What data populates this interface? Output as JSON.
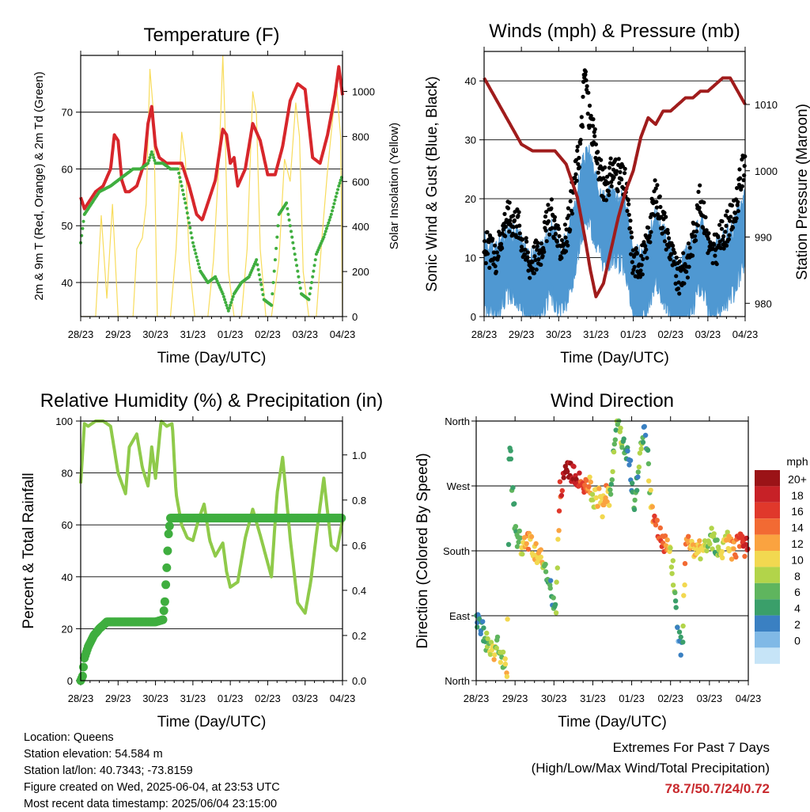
{
  "chart_data": [
    {
      "type": "line",
      "panel": "temperature",
      "title": "Temperature (F)",
      "xlabel": "Time (Day/UTC)",
      "ylabel": "2m & 9m T (Red, Orange) & 2m Td (Green)",
      "y2label": "Solar Insolation (Yellow)",
      "x_ticks": [
        "28/23",
        "29/23",
        "30/23",
        "31/23",
        "01/23",
        "02/23",
        "03/23",
        "04/23"
      ],
      "xlim": [
        0,
        7
      ],
      "ylim": [
        34,
        80
      ],
      "y_ticks": [
        40,
        50,
        60,
        70
      ],
      "y2lim": [
        0,
        1160
      ],
      "y2_ticks": [
        0,
        200,
        400,
        600,
        800,
        1000
      ],
      "grid": true,
      "series": [
        {
          "name": "2m T",
          "color": "#d7262b",
          "axis": "left",
          "x": [
            0,
            0.1,
            0.2,
            0.4,
            0.6,
            0.8,
            0.9,
            1.0,
            1.1,
            1.2,
            1.3,
            1.5,
            1.7,
            1.8,
            1.9,
            2.0,
            2.1,
            2.3,
            2.5,
            2.7,
            2.9,
            3.1,
            3.25,
            3.4,
            3.6,
            3.8,
            3.9,
            4.0,
            4.1,
            4.2,
            4.4,
            4.6,
            4.8,
            5.0,
            5.2,
            5.4,
            5.6,
            5.8,
            6.0,
            6.2,
            6.4,
            6.6,
            6.8,
            6.9,
            7.0
          ],
          "y": [
            55,
            53,
            54,
            56,
            57,
            60,
            66,
            65,
            58,
            56,
            56,
            57,
            61,
            68,
            71,
            64,
            62,
            61,
            61,
            61,
            57,
            52,
            51,
            54,
            58,
            67,
            66,
            61,
            62,
            57,
            60,
            68,
            65,
            59,
            59,
            64,
            72,
            75,
            74,
            62,
            61,
            66,
            73,
            78,
            73
          ]
        },
        {
          "name": "2m Td",
          "color": "#3fae3f",
          "axis": "left",
          "x": [
            0,
            0.1,
            0.3,
            0.5,
            0.8,
            1.0,
            1.2,
            1.4,
            1.6,
            1.8,
            1.9,
            2.0,
            2.2,
            2.4,
            2.6,
            2.8,
            3.0,
            3.2,
            3.4,
            3.6,
            3.8,
            3.95,
            4.1,
            4.3,
            4.5,
            4.7,
            4.9,
            5.1,
            5.3,
            5.5,
            5.7,
            5.9,
            6.1,
            6.3,
            6.5,
            6.7,
            6.9,
            7.0
          ],
          "y": [
            47,
            52,
            54,
            56,
            57,
            58,
            59,
            60,
            60,
            61,
            63,
            61,
            61,
            60,
            60,
            54,
            47,
            42,
            40,
            41,
            38,
            35,
            38,
            40,
            41,
            44,
            37,
            36,
            52,
            54,
            46,
            38,
            37,
            45,
            48,
            52,
            57,
            59
          ]
        },
        {
          "name": "Solar Insolation",
          "color": "#f8dc5c",
          "axis": "right",
          "x": [
            0,
            0.4,
            0.55,
            0.7,
            0.85,
            1.0,
            1.2,
            1.4,
            1.5,
            1.65,
            1.75,
            1.85,
            1.95,
            2.05,
            2.2,
            2.4,
            2.55,
            2.7,
            2.8,
            2.9,
            3.05,
            3.2,
            3.4,
            3.55,
            3.7,
            3.8,
            3.85,
            3.95,
            4.1,
            4.3,
            4.45,
            4.6,
            4.7,
            4.8,
            4.95,
            5.1,
            5.3,
            5.45,
            5.6,
            5.75,
            5.85,
            5.95,
            6.1,
            6.3,
            6.45,
            6.6,
            6.75,
            6.85,
            6.95,
            7.0
          ],
          "y": [
            0,
            0,
            450,
            80,
            500,
            0,
            0,
            0,
            300,
            350,
            500,
            1100,
            900,
            0,
            0,
            0,
            300,
            820,
            700,
            250,
            0,
            0,
            0,
            250,
            700,
            1160,
            900,
            200,
            0,
            0,
            300,
            1000,
            900,
            300,
            0,
            0,
            250,
            700,
            600,
            950,
            800,
            200,
            0,
            0,
            350,
            650,
            900,
            1000,
            800,
            0
          ]
        }
      ]
    },
    {
      "type": "scatter",
      "panel": "winds",
      "title": "Winds (mph) & Pressure (mb)",
      "xlabel": "Time (Day/UTC)",
      "ylabel": "Sonic Wind & Gust (Blue, Black)",
      "y2label": "Station Pressure (Maroon)",
      "x_ticks": [
        "28/23",
        "29/23",
        "30/23",
        "31/23",
        "01/23",
        "02/23",
        "03/23",
        "04/23"
      ],
      "xlim": [
        0,
        7
      ],
      "ylim": [
        0,
        45
      ],
      "y_ticks": [
        0,
        10,
        20,
        30,
        40
      ],
      "y2lim": [
        978,
        1018
      ],
      "y2_ticks": [
        980,
        990,
        1000,
        1010
      ],
      "grid": true,
      "series": [
        {
          "name": "Sonic Wind",
          "color": "#4f98d2",
          "axis": "left",
          "x": [
            0,
            0.3,
            0.6,
            0.9,
            1.2,
            1.5,
            1.8,
            2.0,
            2.2,
            2.4,
            2.6,
            2.8,
            3.0,
            3.2,
            3.5,
            3.8,
            4.0,
            4.3,
            4.6,
            4.9,
            5.2,
            5.5,
            5.8,
            6.1,
            6.4,
            6.7,
            7.0
          ],
          "y": [
            8,
            6,
            10,
            9,
            5,
            6,
            10,
            7,
            8,
            12,
            20,
            23,
            18,
            15,
            16,
            14,
            5,
            6,
            12,
            8,
            3,
            6,
            11,
            6,
            8,
            10,
            16
          ]
        },
        {
          "name": "Gust",
          "color": "#000000",
          "axis": "left",
          "x": [
            0,
            0.3,
            0.6,
            0.9,
            1.2,
            1.5,
            1.8,
            2.0,
            2.2,
            2.4,
            2.6,
            2.7,
            2.8,
            3.0,
            3.2,
            3.5,
            3.8,
            4.0,
            4.3,
            4.6,
            4.9,
            5.2,
            5.5,
            5.8,
            6.1,
            6.4,
            6.7,
            7.0
          ],
          "y": [
            12,
            10,
            17,
            16,
            9,
            11,
            18,
            12,
            13,
            22,
            30,
            42,
            35,
            28,
            22,
            25,
            22,
            9,
            10,
            21,
            14,
            6,
            10,
            20,
            10,
            14,
            17,
            27
          ]
        },
        {
          "name": "Station Pressure",
          "color": "#a01c1c",
          "axis": "right",
          "x": [
            0,
            0.2,
            0.5,
            0.8,
            1.0,
            1.3,
            1.6,
            1.9,
            2.2,
            2.5,
            2.7,
            2.85,
            3.0,
            3.2,
            3.4,
            3.6,
            3.8,
            4.0,
            4.2,
            4.4,
            4.6,
            4.8,
            5.0,
            5.2,
            5.4,
            5.6,
            5.8,
            6.0,
            6.2,
            6.4,
            6.6,
            6.8,
            7.0
          ],
          "y": [
            1014,
            1012,
            1009,
            1006,
            1004,
            1003,
            1003,
            1003,
            1001,
            996,
            990,
            985,
            981,
            983,
            988,
            993,
            997,
            1000,
            1005,
            1008,
            1007,
            1009,
            1009,
            1010,
            1011,
            1011,
            1012,
            1012,
            1013,
            1014,
            1014,
            1012,
            1010
          ]
        }
      ]
    },
    {
      "type": "line",
      "panel": "humidity",
      "title": "Relative Humidity (%) & Precipitation (in)",
      "xlabel": "Time (Day/UTC)",
      "ylabel": "Percent & Total Rainfall",
      "x_ticks": [
        "28/23",
        "29/23",
        "30/23",
        "31/23",
        "01/23",
        "02/23",
        "03/23",
        "04/23"
      ],
      "xlim": [
        0,
        7
      ],
      "ylim": [
        0,
        100
      ],
      "y_ticks": [
        0,
        20,
        40,
        60,
        80,
        100
      ],
      "y2lim": [
        0,
        1.15
      ],
      "y2_ticks": [
        "0.0",
        "0.2",
        "0.4",
        "0.6",
        "0.8",
        "1.0"
      ],
      "grid": true,
      "series": [
        {
          "name": "Relative Humidity",
          "color": "#8fca4a",
          "axis": "left",
          "x": [
            0,
            0.1,
            0.2,
            0.4,
            0.6,
            0.8,
            1.0,
            1.2,
            1.3,
            1.5,
            1.65,
            1.8,
            1.9,
            2.0,
            2.15,
            2.3,
            2.45,
            2.55,
            2.7,
            2.85,
            3.0,
            3.15,
            3.3,
            3.45,
            3.6,
            3.8,
            3.9,
            4.0,
            4.2,
            4.4,
            4.6,
            4.8,
            4.95,
            5.1,
            5.25,
            5.4,
            5.6,
            5.8,
            6.0,
            6.15,
            6.3,
            6.5,
            6.7,
            6.85,
            7.0
          ],
          "y": [
            76,
            99,
            98,
            100,
            100,
            98,
            80,
            72,
            90,
            95,
            82,
            75,
            90,
            78,
            100,
            98,
            99,
            72,
            60,
            55,
            54,
            62,
            68,
            54,
            48,
            53,
            42,
            36,
            38,
            55,
            66,
            56,
            48,
            40,
            72,
            86,
            55,
            30,
            26,
            38,
            56,
            78,
            52,
            50,
            62
          ]
        },
        {
          "name": "Total Rainfall",
          "color": "#3fae3f",
          "axis": "right",
          "x": [
            0,
            0.05,
            0.1,
            0.2,
            0.35,
            0.5,
            0.7,
            1.0,
            1.5,
            2.0,
            2.2,
            2.25,
            2.3,
            2.35,
            2.4,
            2.6,
            3.0,
            4.0,
            5.0,
            6.0,
            7.0
          ],
          "y": [
            0.0,
            0.02,
            0.1,
            0.15,
            0.2,
            0.23,
            0.26,
            0.26,
            0.26,
            0.26,
            0.27,
            0.35,
            0.5,
            0.65,
            0.72,
            0.72,
            0.72,
            0.72,
            0.72,
            0.72,
            0.72
          ]
        }
      ]
    },
    {
      "type": "scatter",
      "panel": "wind-direction",
      "title": "Wind Direction",
      "xlabel": "Time (Day/UTC)",
      "ylabel": "Direction (Colored By Speed)",
      "x_ticks": [
        "28/23",
        "29/23",
        "30/23",
        "31/23",
        "01/23",
        "02/23",
        "03/23",
        "04/23"
      ],
      "xlim": [
        0,
        7
      ],
      "ylim": [
        0,
        360
      ],
      "y_ticks": [
        "North",
        "East",
        "South",
        "West",
        "North"
      ],
      "grid": true,
      "colorbar": {
        "title": "mph",
        "labels": [
          "20+",
          "18",
          "16",
          "14",
          "12",
          "10",
          "8",
          "6",
          "4",
          "2",
          "0"
        ],
        "colors": [
          "#9b1317",
          "#c72127",
          "#e0382b",
          "#f26a33",
          "#faa340",
          "#f2d850",
          "#b2d44a",
          "#5fb55e",
          "#3a9f6a",
          "#3a80c2",
          "#80b9e6",
          "#c6e4f7"
        ]
      },
      "series": [
        {
          "name": "Direction",
          "x": [
            0.05,
            0.15,
            0.25,
            0.35,
            0.45,
            0.55,
            0.7,
            0.8,
            0.85,
            0.9,
            0.95,
            1.05,
            1.15,
            1.25,
            1.35,
            1.5,
            1.65,
            1.8,
            1.95,
            2.05,
            2.15,
            2.25,
            2.3,
            2.5,
            2.6,
            2.7,
            2.8,
            2.9,
            3.05,
            3.15,
            3.25,
            3.35,
            3.45,
            3.6,
            3.75,
            3.85,
            3.95,
            4.05,
            4.15,
            4.25,
            4.35,
            4.5,
            4.65,
            4.8,
            4.95,
            5.05,
            5.15,
            5.2,
            5.3,
            5.4,
            5.55,
            5.7,
            5.85,
            6.0,
            6.15,
            6.3,
            6.45,
            6.6,
            6.75,
            6.9,
            7.0
          ],
          "y": [
            80,
            70,
            55,
            45,
            40,
            50,
            25,
            20,
            340,
            300,
            240,
            200,
            190,
            185,
            195,
            180,
            170,
            150,
            120,
            100,
            260,
            280,
            290,
            290,
            280,
            275,
            270,
            270,
            250,
            255,
            240,
            260,
            250,
            360,
            340,
            320,
            300,
            240,
            280,
            330,
            350,
            240,
            220,
            190,
            180,
            160,
            100,
            60,
            40,
            200,
            190,
            180,
            185,
            200,
            190,
            180,
            195,
            180,
            190,
            185,
            180
          ],
          "speed": [
            2,
            4,
            6,
            8,
            10,
            6,
            8,
            10,
            2,
            4,
            4,
            6,
            8,
            10,
            12,
            10,
            12,
            6,
            4,
            6,
            14,
            18,
            20,
            20,
            18,
            16,
            14,
            12,
            8,
            12,
            10,
            14,
            6,
            6,
            8,
            4,
            2,
            6,
            4,
            8,
            2,
            10,
            16,
            14,
            12,
            8,
            4,
            2,
            4,
            14,
            12,
            10,
            10,
            8,
            6,
            8,
            10,
            12,
            14,
            16,
            18
          ]
        }
      ]
    }
  ],
  "info": {
    "location": "Location: Queens",
    "elevation": "Station elevation: 54.584 m",
    "latlon": "Station lat/lon: 40.7343; -73.8159",
    "created": "Figure created on Wed, 2025-06-04, at 23:53 UTC",
    "recent": "Most recent data timestamp: 2025/06/04 23:15:00"
  },
  "extremes": {
    "title": "Extremes For Past 7 Days",
    "subtitle": "(High/Low/Max Wind/Total Precipitation)",
    "values": "78.7/50.7/24/0.72"
  }
}
